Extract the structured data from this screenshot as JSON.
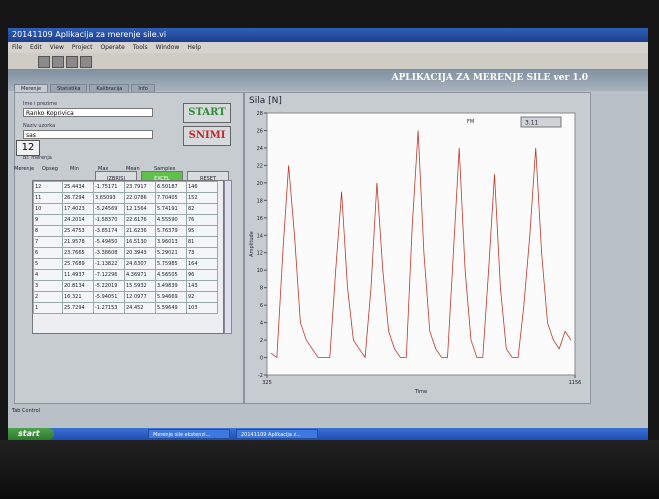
{
  "window_title": "20141109 Aplikacija za merenje sile.vi",
  "menu": [
    "File",
    "Edit",
    "View",
    "Project",
    "Operate",
    "Tools",
    "Window",
    "Help"
  ],
  "app_title": "APLIKACIJA ZA MERENJE SILE ver 1.0",
  "tabs": [
    "Merenje",
    "Statistika",
    "Kalibracija",
    "Info"
  ],
  "fields": [
    {
      "label": "Ime i prezime",
      "value": "Ranko Koprivica"
    },
    {
      "label": "Naziv uzorka",
      "value": "sas"
    }
  ],
  "buttons": {
    "start": "START",
    "save": "SNIMI",
    "delete": "IZBRISI",
    "excel": "EXCEL",
    "reset": "RESET"
  },
  "counter": {
    "label": "Br. merenja",
    "value": "12"
  },
  "table": {
    "columns": [
      "Merenje",
      "Opseg",
      "Min",
      "Max",
      "Mean",
      "Samples"
    ],
    "rows": [
      [
        "12",
        "25.4434",
        "-1.75171",
        "23.7917",
        "6.50187",
        "146"
      ],
      [
        "11",
        "26.7294",
        "3.65093",
        "22.0786",
        "7.70405",
        "152"
      ],
      [
        "10",
        "17.4023",
        "-5.24569",
        "12.1564",
        "5.74191",
        "82"
      ],
      [
        "9",
        "24.2014",
        "-1.58370",
        "22.6176",
        "4.55590",
        "76"
      ],
      [
        "8",
        "25.4753",
        "-3.85174",
        "21.6236",
        "5.76379",
        "95"
      ],
      [
        "7",
        "21.9578",
        "-5.49450",
        "16.5130",
        "3.96013",
        "81"
      ],
      [
        "6",
        "23.7665",
        "-3.38608",
        "20.3943",
        "5.29021",
        "73"
      ],
      [
        "5",
        "25.7689",
        "-1.13822",
        "24.6307",
        "5.75985",
        "164"
      ],
      [
        "4",
        "11.4937",
        "-7.12296",
        "4.36971",
        "4.56505",
        "96"
      ],
      [
        "3",
        "20.8134",
        "-5.22019",
        "15.5932",
        "3.49839",
        "143"
      ],
      [
        "2",
        "16.321",
        "-5.94051",
        "12.0977",
        "5.94669",
        "92"
      ],
      [
        "1",
        "25.7294",
        "-1.27153",
        "24.452",
        "5.59649",
        "103"
      ]
    ]
  },
  "chart_data": {
    "type": "line",
    "title": "Sila [N]",
    "x_label": "Time",
    "y_label": "Amplitude",
    "xticks": [
      325,
      1156
    ],
    "color": "#c0392b",
    "ylim": [
      -2,
      28
    ],
    "yticks": [
      -2,
      0,
      2,
      4,
      6,
      8,
      10,
      12,
      14,
      16,
      18,
      20,
      22,
      24,
      26,
      28
    ],
    "values": [
      0.5,
      0,
      12,
      22,
      14,
      4,
      2,
      1,
      0,
      0,
      0,
      10,
      19,
      8,
      2,
      1,
      0,
      8,
      20,
      10,
      3,
      1,
      0,
      0,
      15,
      26,
      12,
      3,
      1,
      0,
      0,
      12,
      24,
      10,
      2,
      0,
      0,
      10,
      21,
      8,
      1,
      0,
      0,
      6,
      14,
      24,
      12,
      4,
      2,
      1,
      3,
      2
    ]
  },
  "fm": {
    "label": "FM",
    "value": "3.11"
  },
  "status": "Tab Control",
  "taskbar": {
    "start": "start",
    "items": [
      "Merenje sile ekstenzi...",
      "20141109 Aplikacija z..."
    ]
  }
}
